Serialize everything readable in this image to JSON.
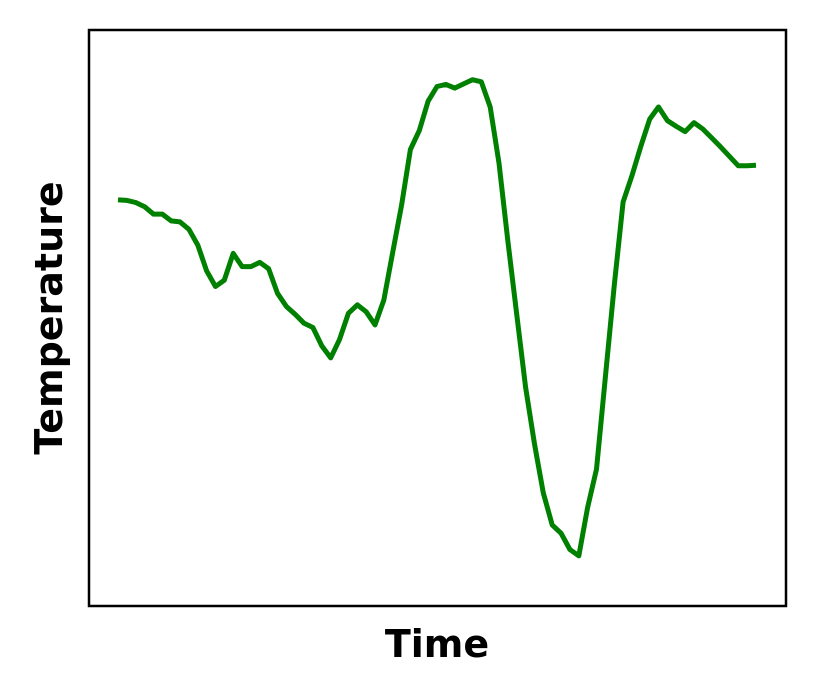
{
  "chart_data": {
    "type": "line",
    "title": "",
    "xlabel": "Time",
    "ylabel": "Temperature",
    "x_ticks_visible": false,
    "y_ticks_visible": false,
    "grid": false,
    "legend": "none",
    "xlim": [
      0,
      72
    ],
    "ylim": [
      0,
      100
    ],
    "series": [
      {
        "color": "#008000",
        "x": [
          0,
          1,
          2,
          3,
          4,
          5,
          6,
          7,
          8,
          9,
          10,
          11,
          12,
          13,
          14,
          15,
          16,
          17,
          18,
          19,
          20,
          21,
          22,
          23,
          24,
          25,
          26,
          27,
          28,
          29,
          30,
          31,
          32,
          33,
          34,
          35,
          36,
          37,
          38,
          39,
          40,
          41,
          42,
          43,
          44,
          45,
          46,
          47,
          48,
          49,
          50,
          51,
          52,
          53,
          54,
          55,
          56,
          57,
          58,
          59,
          60,
          61,
          62,
          63,
          64,
          65,
          66,
          67,
          68,
          69,
          70,
          71,
          72
        ],
        "values": [
          72.4,
          72.3,
          71.9,
          71.1,
          69.7,
          69.7,
          68.4,
          68.2,
          66.8,
          63.8,
          58.9,
          55.9,
          57.1,
          62.2,
          59.7,
          59.7,
          60.5,
          59.3,
          54.6,
          52.1,
          50.6,
          48.9,
          48.1,
          44.6,
          42.3,
          45.8,
          50.8,
          52.4,
          51.1,
          48.6,
          53.3,
          62.4,
          71.4,
          82.0,
          85.6,
          91.2,
          94.0,
          94.4,
          93.7,
          94.5,
          95.3,
          94.9,
          90.1,
          79.4,
          64.5,
          50.5,
          36.7,
          25.9,
          16.6,
          10.5,
          8.9,
          5.8,
          4.6,
          13.8,
          21.1,
          38.7,
          56.0,
          72.0,
          77.0,
          82.6,
          87.8,
          90.1,
          87.5,
          86.4,
          85.4,
          87.1,
          85.9,
          84.2,
          82.5,
          80.7,
          78.9,
          78.9,
          79.0
        ]
      }
    ]
  }
}
